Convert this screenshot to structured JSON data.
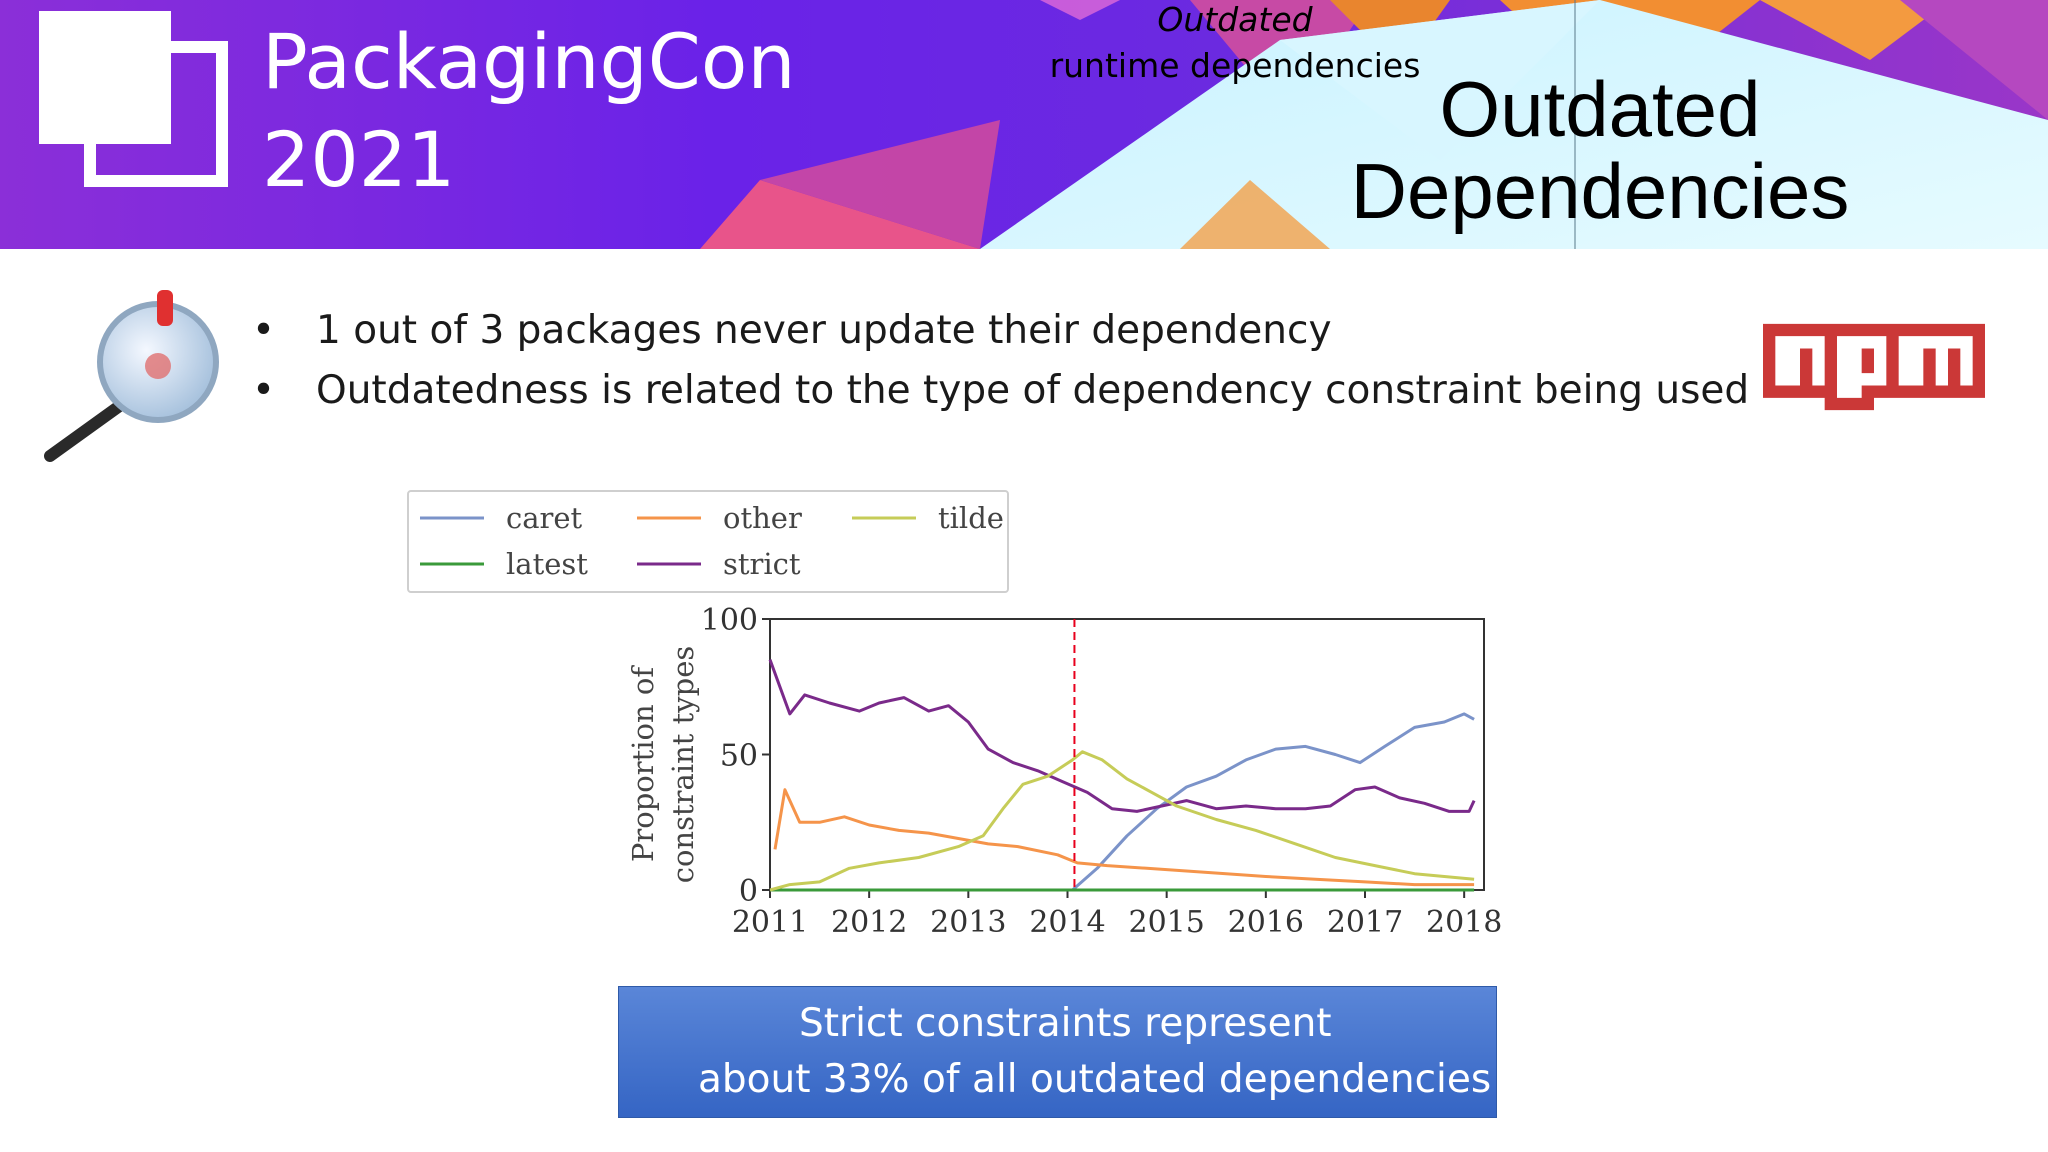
{
  "header": {
    "conference_name": "PackagingCon",
    "conference_year": "2021",
    "slide_title_line1": "Outdated",
    "slide_title_line2": "Dependencies"
  },
  "bullets": [
    {
      "marker": "•",
      "text": "1 out of 3 packages never update their dependency"
    },
    {
      "marker": "•",
      "text": "Outdatedness is related to the type of dependency constraint being used"
    }
  ],
  "logos": {
    "npm": "npm",
    "magnifier": "magnifying-glass-icon"
  },
  "chart_caption": {
    "line1": "Outdated",
    "line2": "runtime dependencies"
  },
  "callout": {
    "line1": "Strict constraints represent",
    "line2": "about 33% of all outdated dependencies"
  },
  "colors": {
    "banner_purple": "#6a22e8",
    "banner_magenta": "#c03ab8",
    "banner_orange": "#f08a3a",
    "npm_red": "#cb3837",
    "callout_blue": "#4472c4",
    "reference_line": "#e8001c"
  },
  "chart_data": {
    "type": "line",
    "xlabel": "",
    "ylabel": "Proportion of constraint types",
    "ylabel_lines": [
      "Proportion of",
      "constraint types"
    ],
    "xlim": [
      2011,
      2018.2
    ],
    "ylim": [
      0,
      100
    ],
    "xticks": [
      "2011",
      "2012",
      "2013",
      "2014",
      "2015",
      "2016",
      "2017",
      "2018"
    ],
    "yticks": [
      "0",
      "50",
      "100"
    ],
    "vertical_marker_x": 2014.07,
    "legend_position": "top-left (outside)",
    "grid": false,
    "series": [
      {
        "name": "caret",
        "color": "#7b93c9",
        "points": [
          [
            2014.05,
            0
          ],
          [
            2014.3,
            8
          ],
          [
            2014.6,
            20
          ],
          [
            2014.9,
            30
          ],
          [
            2015.2,
            38
          ],
          [
            2015.5,
            42
          ],
          [
            2015.8,
            48
          ],
          [
            2016.1,
            52
          ],
          [
            2016.4,
            53
          ],
          [
            2016.7,
            50
          ],
          [
            2016.95,
            47
          ],
          [
            2017.2,
            53
          ],
          [
            2017.5,
            60
          ],
          [
            2017.8,
            62
          ],
          [
            2018.0,
            65
          ],
          [
            2018.1,
            63
          ]
        ]
      },
      {
        "name": "latest",
        "color": "#3a9a3a",
        "points": [
          [
            2011,
            0
          ],
          [
            2012,
            0
          ],
          [
            2013,
            0
          ],
          [
            2014,
            0
          ],
          [
            2015,
            0
          ],
          [
            2016,
            0
          ],
          [
            2017,
            0
          ],
          [
            2018.1,
            0
          ]
        ]
      },
      {
        "name": "other",
        "color": "#f5944a",
        "points": [
          [
            2011.05,
            15
          ],
          [
            2011.15,
            37
          ],
          [
            2011.3,
            25
          ],
          [
            2011.5,
            25
          ],
          [
            2011.75,
            27
          ],
          [
            2012.0,
            24
          ],
          [
            2012.3,
            22
          ],
          [
            2012.6,
            21
          ],
          [
            2012.9,
            19
          ],
          [
            2013.2,
            17
          ],
          [
            2013.5,
            16
          ],
          [
            2013.9,
            13
          ],
          [
            2014.1,
            10
          ],
          [
            2014.4,
            9
          ],
          [
            2014.8,
            8
          ],
          [
            2015.2,
            7
          ],
          [
            2015.6,
            6
          ],
          [
            2016.0,
            5
          ],
          [
            2016.5,
            4
          ],
          [
            2017.0,
            3
          ],
          [
            2017.5,
            2
          ],
          [
            2018.1,
            2
          ]
        ]
      },
      {
        "name": "strict",
        "color": "#7a2a8a",
        "points": [
          [
            2011.0,
            85
          ],
          [
            2011.1,
            75
          ],
          [
            2011.2,
            65
          ],
          [
            2011.35,
            72
          ],
          [
            2011.6,
            69
          ],
          [
            2011.9,
            66
          ],
          [
            2012.1,
            69
          ],
          [
            2012.35,
            71
          ],
          [
            2012.6,
            66
          ],
          [
            2012.8,
            68
          ],
          [
            2013.0,
            62
          ],
          [
            2013.2,
            52
          ],
          [
            2013.45,
            47
          ],
          [
            2013.7,
            44
          ],
          [
            2013.95,
            40
          ],
          [
            2014.2,
            36
          ],
          [
            2014.45,
            30
          ],
          [
            2014.7,
            29
          ],
          [
            2014.95,
            31
          ],
          [
            2015.2,
            33
          ],
          [
            2015.5,
            30
          ],
          [
            2015.8,
            31
          ],
          [
            2016.1,
            30
          ],
          [
            2016.4,
            30
          ],
          [
            2016.65,
            31
          ],
          [
            2016.9,
            37
          ],
          [
            2017.1,
            38
          ],
          [
            2017.35,
            34
          ],
          [
            2017.6,
            32
          ],
          [
            2017.85,
            29
          ],
          [
            2018.05,
            29
          ],
          [
            2018.1,
            33
          ]
        ]
      },
      {
        "name": "tilde",
        "color": "#c6cc58",
        "points": [
          [
            2011.0,
            0
          ],
          [
            2011.2,
            2
          ],
          [
            2011.5,
            3
          ],
          [
            2011.8,
            8
          ],
          [
            2012.1,
            10
          ],
          [
            2012.5,
            12
          ],
          [
            2012.9,
            16
          ],
          [
            2013.15,
            20
          ],
          [
            2013.35,
            30
          ],
          [
            2013.55,
            39
          ],
          [
            2013.8,
            42
          ],
          [
            2014.05,
            48
          ],
          [
            2014.15,
            51
          ],
          [
            2014.35,
            48
          ],
          [
            2014.6,
            41
          ],
          [
            2014.85,
            36
          ],
          [
            2015.1,
            31
          ],
          [
            2015.5,
            26
          ],
          [
            2015.9,
            22
          ],
          [
            2016.3,
            17
          ],
          [
            2016.7,
            12
          ],
          [
            2017.1,
            9
          ],
          [
            2017.5,
            6
          ],
          [
            2017.8,
            5
          ],
          [
            2018.1,
            4
          ]
        ]
      }
    ]
  }
}
